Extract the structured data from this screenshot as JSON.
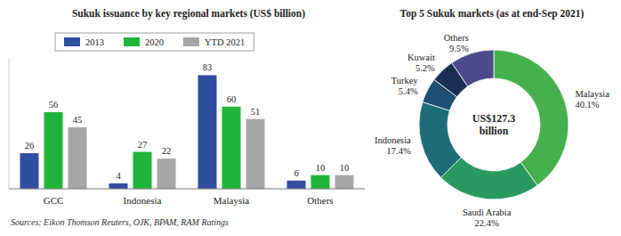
{
  "chart_data": [
    {
      "type": "bar",
      "title": "Sukuk issuance by key regional markets (US$ billion)",
      "categories": [
        "GCC",
        "Indonesia",
        "Malaysia",
        "Others"
      ],
      "series": [
        {
          "name": "2013",
          "color": "#2f4ea0",
          "values": [
            26,
            4,
            83,
            6
          ]
        },
        {
          "name": "2020",
          "color": "#1fb53a",
          "values": [
            56,
            27,
            60,
            10
          ]
        },
        {
          "name": "YTD 2021",
          "color": "#a6a6a6",
          "values": [
            45,
            22,
            51,
            10
          ]
        }
      ],
      "ylim": [
        0,
        95
      ],
      "tick_labels": "x",
      "data_labels": true,
      "legend": "top",
      "source": "Sources: Eikon Thomson Reuters, OJK, BPAM, RAM Ratings"
    },
    {
      "type": "pie",
      "title": "Top 5 Sukuk markets (as at end-Sep 2021)",
      "categories": [
        "Malaysia",
        "Saudi Arabia",
        "Indonesia",
        "Turkey",
        "Kuwait",
        "Others"
      ],
      "values": [
        40.1,
        22.4,
        17.4,
        5.4,
        5.2,
        9.5
      ],
      "value_labels": [
        "40.1%",
        "22.4%",
        "17.4%",
        "5.4%",
        "5.2%",
        "9.5%"
      ],
      "colors": [
        "#46b04e",
        "#28995f",
        "#1c6d78",
        "#1f4f72",
        "#1b2f55",
        "#4b4a8a"
      ],
      "center_label": "US$127.3 billion",
      "data_labels": true
    }
  ]
}
